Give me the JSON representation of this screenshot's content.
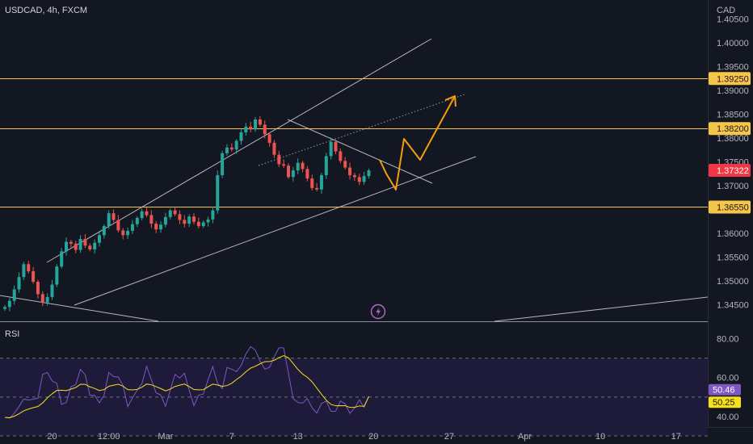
{
  "header": {
    "symbol": "USDCAD, 4h, FXCM",
    "currency": "CAD"
  },
  "colors": {
    "background": "#131722",
    "up": "#26a69a",
    "down": "#ef5350",
    "level": "#f7c548",
    "projection": "#f59e0b",
    "rsi_line": "#7e57c2",
    "rsi_ma": "#f7e017",
    "trend": "#d1d4dc",
    "last_price_bg": "#f23645",
    "rsi_band_fill": "#1e1b3a"
  },
  "price_axis": {
    "ticks": [
      "1.40500",
      "1.40000",
      "1.39500",
      "1.39000",
      "1.38500",
      "1.38000",
      "1.37500",
      "1.37000",
      "1.36000",
      "1.35500",
      "1.35000",
      "1.34500"
    ],
    "tick_values": [
      1.405,
      1.4,
      1.395,
      1.39,
      1.385,
      1.38,
      1.375,
      1.37,
      1.36,
      1.355,
      1.35,
      1.345
    ],
    "range": [
      1.3415,
      1.409
    ]
  },
  "levels": [
    {
      "label": "1.39250",
      "value": 1.3925
    },
    {
      "label": "1.38200",
      "value": 1.382
    },
    {
      "label": "1.36550",
      "value": 1.3655
    }
  ],
  "last_price": {
    "label": "1.37322",
    "value": 1.37322
  },
  "time_axis": {
    "labels": [
      "20",
      "12:00",
      "Mar",
      "7",
      "13",
      "20",
      "27",
      "Apr",
      "10",
      "17"
    ],
    "bar_index": [
      10,
      22,
      34,
      48,
      62,
      78,
      94,
      110,
      126,
      142
    ]
  },
  "rsi": {
    "title": "RSI",
    "ticks": [
      "80.00",
      "60.00",
      "40.00"
    ],
    "tick_values": [
      80,
      60,
      40
    ],
    "range": [
      35,
      86
    ],
    "band": [
      30,
      70
    ],
    "midline": 50,
    "value_label": "50.46",
    "ma_label": "50.25",
    "value": 50.46,
    "ma": 50.25
  },
  "chart_data": {
    "type": "candlestick",
    "series_closes": [
      1.3445,
      1.3458,
      1.3482,
      1.3508,
      1.3535,
      1.352,
      1.3498,
      1.3472,
      1.3455,
      1.3466,
      1.3492,
      1.353,
      1.3562,
      1.3582,
      1.3578,
      1.3565,
      1.3588,
      1.3574,
      1.3566,
      1.358,
      1.3596,
      1.3615,
      1.3642,
      1.3628,
      1.3606,
      1.3596,
      1.3605,
      1.3619,
      1.3632,
      1.3646,
      1.3638,
      1.362,
      1.3608,
      1.3618,
      1.3634,
      1.3648,
      1.364,
      1.3628,
      1.362,
      1.3635,
      1.3624,
      1.3615,
      1.3623,
      1.3629,
      1.3648,
      1.3722,
      1.3768,
      1.378,
      1.3776,
      1.3794,
      1.3812,
      1.3824,
      1.3818,
      1.3839,
      1.3828,
      1.3808,
      1.379,
      1.3765,
      1.3745,
      1.3742,
      1.3718,
      1.3732,
      1.3748,
      1.3735,
      1.3715,
      1.3695,
      1.3692,
      1.3722,
      1.3762,
      1.3792,
      1.3772,
      1.3752,
      1.3738,
      1.3722,
      1.3718,
      1.3708,
      1.372,
      1.3732
    ]
  }
}
